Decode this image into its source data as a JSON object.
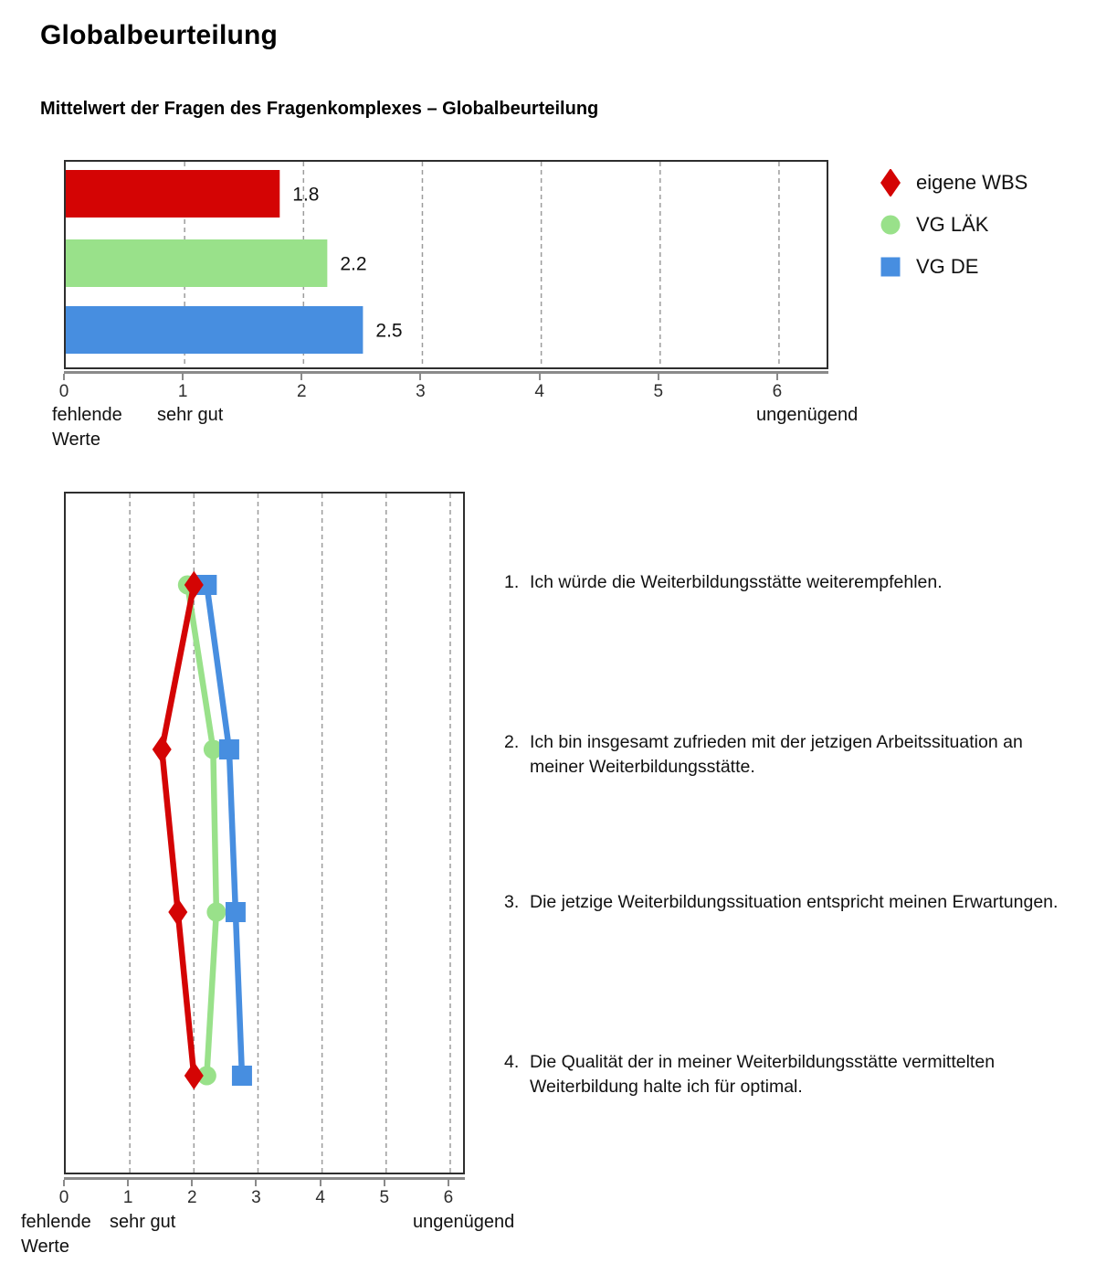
{
  "page": {
    "title": "Globalbeurteilung",
    "subtitle": "Mittelwert der Fragen des Fragenkomplexes – Globalbeurteilung"
  },
  "colors": {
    "red": "#d40404",
    "green": "#99e18a",
    "blue": "#478ee0",
    "grid": "#9c9c9c",
    "axis": "#8a8a8a",
    "plot_border": "#2e2e2e"
  },
  "legend": {
    "items": [
      {
        "label": "eigene WBS",
        "marker": "diamond",
        "color": "#d40404"
      },
      {
        "label": "VG LÄK",
        "marker": "circle",
        "color": "#99e18a"
      },
      {
        "label": "VG DE",
        "marker": "square",
        "color": "#478ee0"
      }
    ]
  },
  "axis_labels": {
    "left_line1": "fehlende",
    "left_line2": "Werte",
    "good": "sehr gut",
    "bad": "ungenügend"
  },
  "chart_data": [
    {
      "type": "bar",
      "orientation": "horizontal",
      "title": "Mittelwert der Fragen des Fragenkomplexes – Globalbeurteilung",
      "xlim": [
        0,
        6.4
      ],
      "xticks": [
        0,
        1,
        2,
        3,
        4,
        5,
        6
      ],
      "grid": "vertical-dashed",
      "legend_position": "right",
      "series": [
        {
          "name": "eigene WBS",
          "value": 1.8,
          "label": "1.8",
          "color": "#d40404",
          "marker": "diamond"
        },
        {
          "name": "VG LÄK",
          "value": 2.2,
          "label": "2.2",
          "color": "#99e18a",
          "marker": "circle"
        },
        {
          "name": "VG DE",
          "value": 2.5,
          "label": "2.5",
          "color": "#478ee0",
          "marker": "square"
        }
      ]
    },
    {
      "type": "line",
      "orientation": "vertical-categories",
      "xlim": [
        0,
        6.2
      ],
      "xticks": [
        0,
        1,
        2,
        3,
        4,
        5,
        6
      ],
      "grid": "vertical-dashed",
      "categories": [
        "1",
        "2",
        "3",
        "4"
      ],
      "series": [
        {
          "name": "eigene WBS",
          "values": [
            2.0,
            1.5,
            1.75,
            2.0
          ],
          "color": "#d40404",
          "marker": "diamond"
        },
        {
          "name": "VG LÄK",
          "values": [
            1.9,
            2.3,
            2.35,
            2.2
          ],
          "color": "#99e18a",
          "marker": "circle"
        },
        {
          "name": "VG DE",
          "values": [
            2.2,
            2.55,
            2.65,
            2.75
          ],
          "color": "#478ee0",
          "marker": "square"
        }
      ]
    }
  ],
  "questions": [
    {
      "number": "1.",
      "text": "Ich würde die Weiterbildungsstätte weiterempfehlen."
    },
    {
      "number": "2.",
      "text": "Ich bin insgesamt zufrieden mit der jetzigen Arbeitssituation an meiner Weiterbildungsstätte."
    },
    {
      "number": "3.",
      "text": "Die jetzige Weiterbildungssituation entspricht meinen Erwartungen."
    },
    {
      "number": "4.",
      "text": "Die Qualität der in meiner Weiterbildungsstätte vermittelten Weiterbildung halte ich für optimal."
    }
  ]
}
